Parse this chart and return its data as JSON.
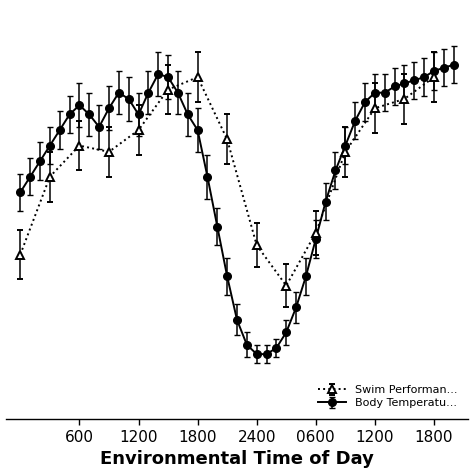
{
  "title": "",
  "xlabel": "Environmental Time of Day",
  "ylabel": "",
  "xtick_labels": [
    "600",
    "1200",
    "1800",
    "2400",
    "0600",
    "1200",
    "1800"
  ],
  "xtick_positions": [
    6,
    12,
    18,
    24,
    30,
    36,
    42
  ],
  "background_color": "#ffffff",
  "body_temp": {
    "x": [
      0,
      1,
      2,
      3,
      4,
      5,
      6,
      7,
      8,
      9,
      10,
      11,
      12,
      13,
      14,
      15,
      16,
      17,
      18,
      19,
      20,
      21,
      22,
      23,
      24,
      25,
      26,
      27,
      28,
      29,
      30,
      31,
      32,
      33,
      34,
      35,
      36,
      37,
      38,
      39,
      40,
      41,
      42,
      43,
      44
    ],
    "y": [
      0.55,
      0.6,
      0.65,
      0.7,
      0.75,
      0.8,
      0.83,
      0.8,
      0.76,
      0.82,
      0.87,
      0.85,
      0.8,
      0.87,
      0.93,
      0.92,
      0.87,
      0.8,
      0.75,
      0.6,
      0.44,
      0.28,
      0.14,
      0.06,
      0.03,
      0.03,
      0.05,
      0.1,
      0.18,
      0.28,
      0.4,
      0.52,
      0.62,
      0.7,
      0.78,
      0.84,
      0.87,
      0.87,
      0.89,
      0.9,
      0.91,
      0.92,
      0.94,
      0.95,
      0.96
    ],
    "yerr": [
      0.06,
      0.06,
      0.06,
      0.06,
      0.06,
      0.06,
      0.07,
      0.07,
      0.07,
      0.07,
      0.07,
      0.07,
      0.07,
      0.07,
      0.07,
      0.07,
      0.07,
      0.07,
      0.07,
      0.07,
      0.06,
      0.06,
      0.05,
      0.04,
      0.03,
      0.03,
      0.03,
      0.04,
      0.05,
      0.06,
      0.06,
      0.06,
      0.06,
      0.06,
      0.06,
      0.06,
      0.06,
      0.06,
      0.06,
      0.06,
      0.06,
      0.06,
      0.06,
      0.06,
      0.06
    ],
    "color": "#000000",
    "marker": "o",
    "linestyle": "-",
    "label": "Body Temperatu..."
  },
  "swim_perf": {
    "x": [
      0,
      3,
      6,
      9,
      12,
      15,
      18,
      21,
      24,
      27,
      30,
      33,
      36,
      39,
      42
    ],
    "y": [
      0.35,
      0.6,
      0.7,
      0.68,
      0.75,
      0.88,
      0.92,
      0.72,
      0.38,
      0.25,
      0.42,
      0.68,
      0.82,
      0.85,
      0.92
    ],
    "yerr": [
      0.08,
      0.08,
      0.08,
      0.08,
      0.08,
      0.08,
      0.08,
      0.08,
      0.07,
      0.07,
      0.07,
      0.08,
      0.08,
      0.08,
      0.08
    ],
    "color": "#000000",
    "marker": "^",
    "linestyle": ":",
    "label": "Swim Performan..."
  }
}
